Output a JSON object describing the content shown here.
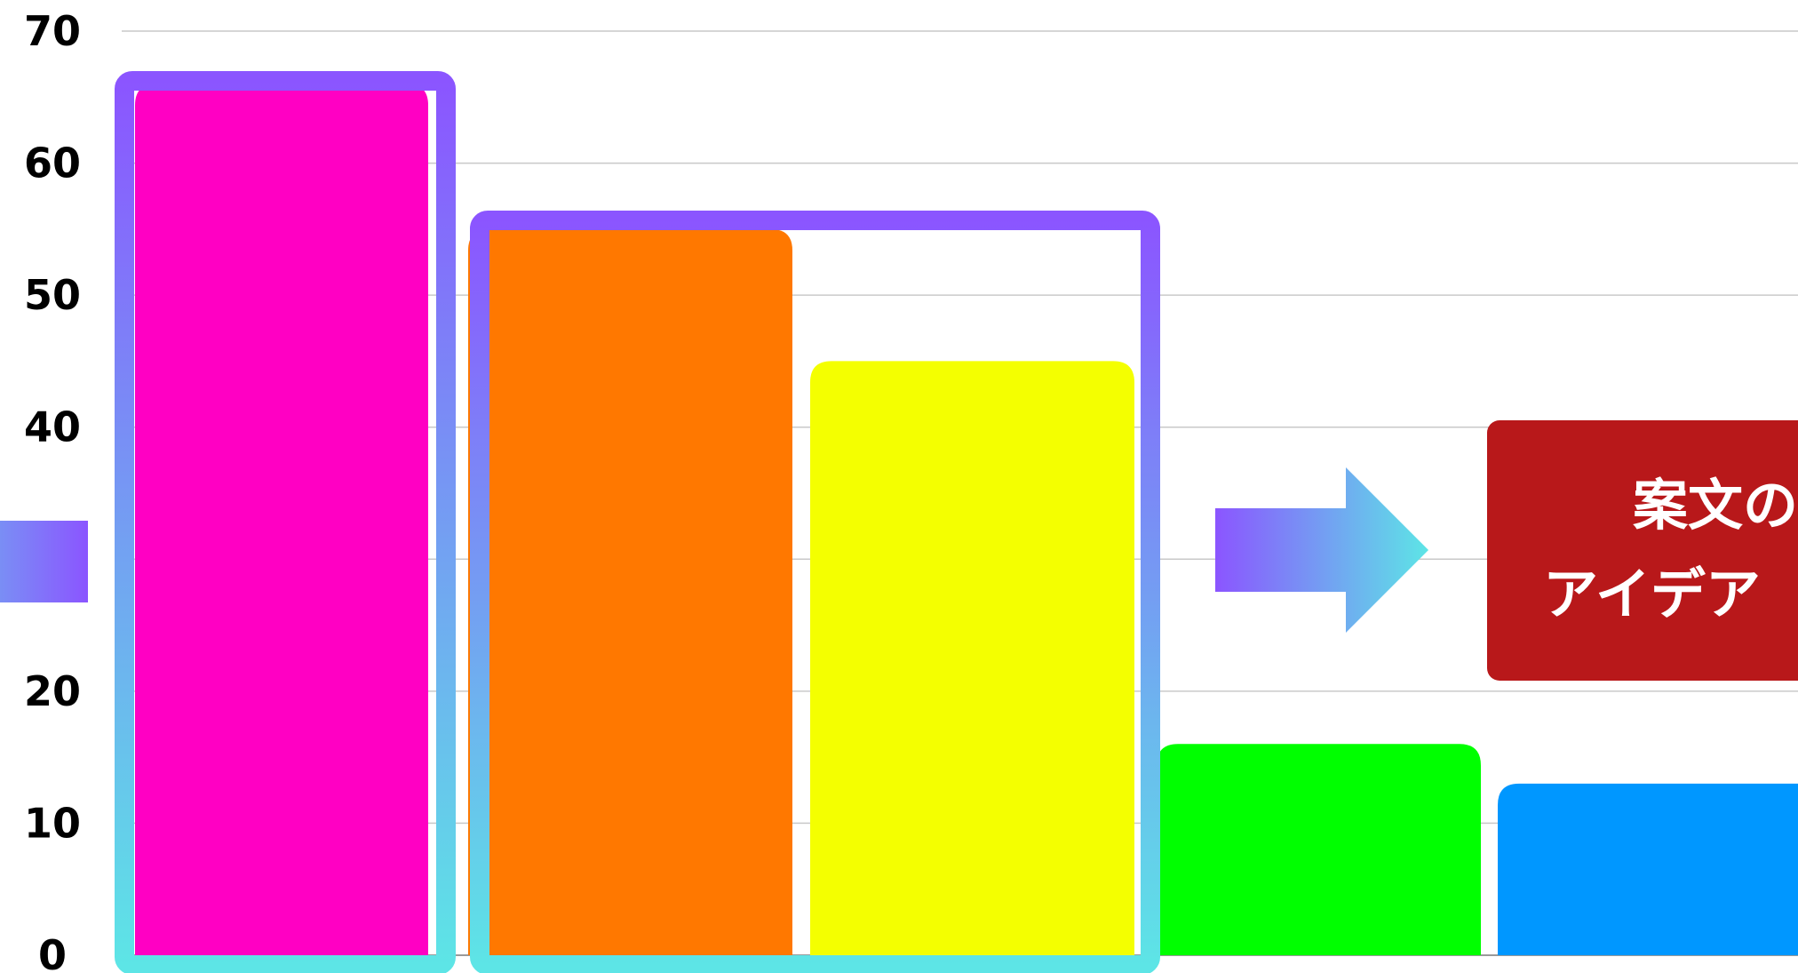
{
  "chart_data": {
    "type": "bar",
    "categories": [
      "",
      "",
      "",
      "",
      ""
    ],
    "values": [
      66,
      55,
      45,
      16,
      13
    ],
    "bar_colors": [
      "#ff00c3",
      "#ff7800",
      "#f4ff00",
      "#00ff00",
      "#0097ff"
    ],
    "ylim": [
      0,
      70
    ],
    "yticks": [
      {
        "value": 0,
        "label": "0"
      },
      {
        "value": 10,
        "label": "10"
      },
      {
        "value": 20,
        "label": "20"
      },
      {
        "value": 30,
        "label": ""
      },
      {
        "value": 40,
        "label": "40"
      },
      {
        "value": 50,
        "label": "50"
      },
      {
        "value": 60,
        "label": "60"
      },
      {
        "value": 70,
        "label": "70"
      }
    ],
    "grid": true,
    "grid_color": "#c9c9c9",
    "xlabel": "",
    "ylabel": "",
    "highlight_gradient": [
      "#8b55ff",
      "#5de5e6"
    ]
  },
  "callout": {
    "line1": "案文の",
    "line2": "アイデア",
    "color": "#b8181a",
    "text_color": "#ffffff"
  }
}
